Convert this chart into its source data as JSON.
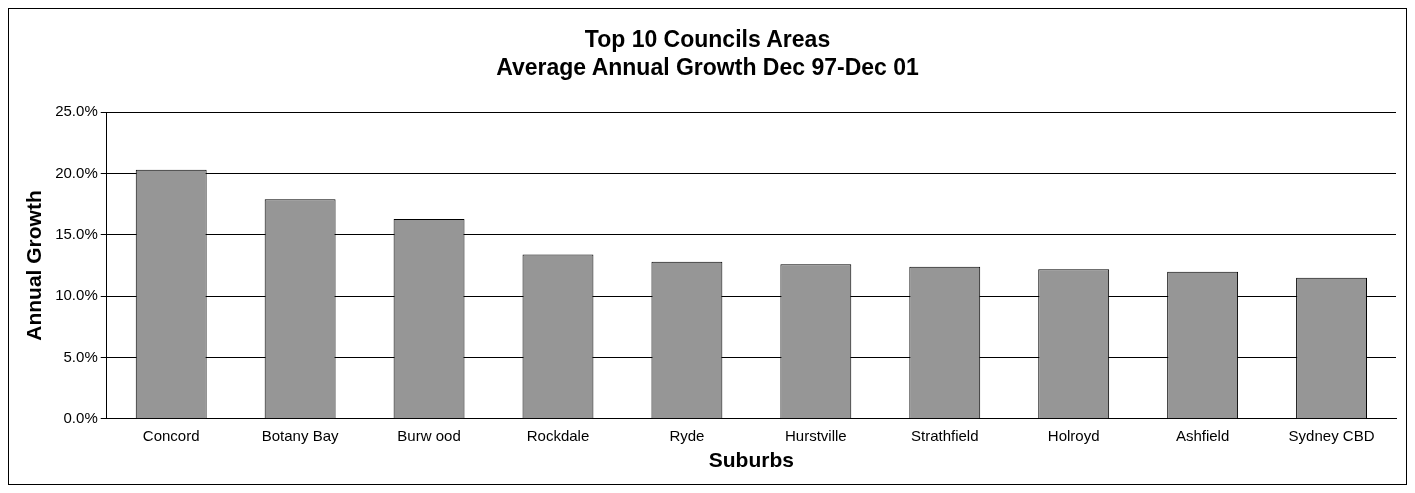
{
  "chart_data": {
    "type": "bar",
    "title": "Top 10 Councils Areas\nAverage Annual Growth Dec 97-Dec 01",
    "xlabel": "Suburbs",
    "ylabel": "Annual Growth",
    "categories": [
      "Concord",
      "Botany Bay",
      "Burw ood",
      "Rockdale",
      "Ryde",
      "Hurstville",
      "Strathfield",
      "Holroyd",
      "Ashfield",
      "Sydney CBD"
    ],
    "values": [
      20.3,
      17.9,
      16.3,
      13.4,
      12.8,
      12.6,
      12.4,
      12.2,
      12.0,
      11.5
    ],
    "color": "#969696",
    "ylim": [
      0,
      25
    ],
    "yticks": [
      {
        "value": 0,
        "label": "0.0%"
      },
      {
        "value": 5,
        "label": "5.0%"
      },
      {
        "value": 10,
        "label": "10.0%"
      },
      {
        "value": 15,
        "label": "15.0%"
      },
      {
        "value": 20,
        "label": "20.0%"
      },
      {
        "value": 25,
        "label": "25.0%"
      }
    ],
    "grid": "y",
    "legend": false
  }
}
